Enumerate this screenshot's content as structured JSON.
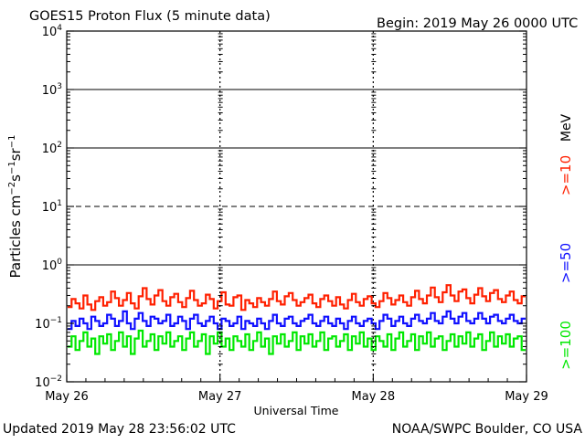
{
  "header": {
    "title": "GOES15 Proton Flux (5 minute data)",
    "begin": "Begin: 2019 May 26 0000 UTC"
  },
  "footer": {
    "updated": "Updated 2019 May 28 23:56:02 UTC",
    "credit": "NOAA/SWPC Boulder, CO USA"
  },
  "right_legend": {
    "unit": "MeV",
    "entries": [
      {
        "label": ">=10",
        "color": "#ff2000"
      },
      {
        "label": ">=50",
        "color": "#1010ff"
      },
      {
        "label": ">=100",
        "color": "#00e800"
      }
    ]
  },
  "chart_data": {
    "type": "line",
    "title": "GOES15 Proton Flux (5 minute data)",
    "xlabel": "Universal Time",
    "ylabel_parts": {
      "base": "Particles cm",
      "exp1": "−2",
      "mid1": "s",
      "exp2": "−1",
      "mid2": "sr",
      "exp3": "−1"
    },
    "y_scale": "log",
    "ylim": [
      0.01,
      10000
    ],
    "y_ticks": [
      {
        "value": 0.01,
        "base": "10",
        "exp": "−2"
      },
      {
        "value": 0.1,
        "base": "10",
        "exp": "−1"
      },
      {
        "value": 1,
        "base": "10",
        "exp": "0"
      },
      {
        "value": 10,
        "base": "10",
        "exp": "1"
      },
      {
        "value": 100,
        "base": "10",
        "exp": "2"
      },
      {
        "value": 1000,
        "base": "10",
        "exp": "3"
      },
      {
        "value": 10000,
        "base": "10",
        "exp": "4"
      }
    ],
    "x_ticks": [
      "May 26",
      "May 27",
      "May 28",
      "May 29"
    ],
    "xlim_days": [
      0,
      3
    ],
    "threshold_lines": [
      {
        "value": 10,
        "style": "dashed"
      },
      {
        "value": 1,
        "style": "solid"
      },
      {
        "value": 100,
        "style": "solid"
      },
      {
        "value": 1000,
        "style": "solid"
      }
    ],
    "series": [
      {
        "name": ">=10",
        "color": "#ff2000",
        "values": [
          0.19,
          0.26,
          0.22,
          0.18,
          0.3,
          0.21,
          0.17,
          0.24,
          0.28,
          0.2,
          0.23,
          0.35,
          0.27,
          0.2,
          0.25,
          0.33,
          0.22,
          0.18,
          0.29,
          0.4,
          0.26,
          0.21,
          0.3,
          0.37,
          0.24,
          0.2,
          0.28,
          0.32,
          0.23,
          0.19,
          0.27,
          0.36,
          0.25,
          0.2,
          0.22,
          0.31,
          0.26,
          0.18,
          0.24,
          0.34,
          0.21,
          0.2,
          0.28,
          0.3,
          0.17,
          0.25,
          0.22,
          0.19,
          0.27,
          0.23,
          0.2,
          0.26,
          0.35,
          0.24,
          0.21,
          0.29,
          0.33,
          0.25,
          0.2,
          0.23,
          0.27,
          0.31,
          0.22,
          0.19,
          0.26,
          0.3,
          0.24,
          0.2,
          0.28,
          0.21,
          0.18,
          0.25,
          0.32,
          0.23,
          0.2,
          0.26,
          0.29,
          0.22,
          0.19,
          0.24,
          0.33,
          0.27,
          0.21,
          0.25,
          0.3,
          0.23,
          0.2,
          0.28,
          0.36,
          0.26,
          0.22,
          0.3,
          0.41,
          0.28,
          0.23,
          0.34,
          0.45,
          0.3,
          0.24,
          0.35,
          0.38,
          0.27,
          0.22,
          0.31,
          0.4,
          0.29,
          0.24,
          0.33,
          0.37,
          0.26,
          0.23,
          0.3,
          0.35,
          0.25,
          0.22,
          0.29
        ]
      },
      {
        "name": ">=50",
        "color": "#1010ff",
        "values": [
          0.08,
          0.11,
          0.09,
          0.12,
          0.1,
          0.08,
          0.13,
          0.11,
          0.09,
          0.1,
          0.14,
          0.12,
          0.09,
          0.11,
          0.16,
          0.1,
          0.08,
          0.12,
          0.15,
          0.11,
          0.09,
          0.13,
          0.12,
          0.1,
          0.11,
          0.14,
          0.09,
          0.1,
          0.13,
          0.11,
          0.08,
          0.12,
          0.14,
          0.1,
          0.09,
          0.11,
          0.13,
          0.1,
          0.08,
          0.12,
          0.11,
          0.09,
          0.1,
          0.13,
          0.08,
          0.11,
          0.1,
          0.09,
          0.12,
          0.1,
          0.08,
          0.11,
          0.14,
          0.1,
          0.09,
          0.12,
          0.13,
          0.1,
          0.09,
          0.11,
          0.12,
          0.14,
          0.1,
          0.09,
          0.11,
          0.13,
          0.1,
          0.09,
          0.12,
          0.1,
          0.08,
          0.11,
          0.13,
          0.1,
          0.09,
          0.11,
          0.12,
          0.1,
          0.08,
          0.11,
          0.14,
          0.12,
          0.09,
          0.11,
          0.13,
          0.1,
          0.09,
          0.12,
          0.14,
          0.11,
          0.1,
          0.12,
          0.15,
          0.11,
          0.1,
          0.13,
          0.16,
          0.12,
          0.1,
          0.13,
          0.15,
          0.11,
          0.1,
          0.12,
          0.15,
          0.12,
          0.1,
          0.13,
          0.14,
          0.11,
          0.1,
          0.12,
          0.14,
          0.11,
          0.1,
          0.12
        ]
      },
      {
        "name": ">=100",
        "color": "#00e800",
        "values": [
          0.04,
          0.06,
          0.035,
          0.05,
          0.07,
          0.04,
          0.055,
          0.03,
          0.06,
          0.045,
          0.065,
          0.035,
          0.05,
          0.07,
          0.04,
          0.06,
          0.03,
          0.055,
          0.075,
          0.04,
          0.05,
          0.065,
          0.035,
          0.06,
          0.045,
          0.07,
          0.04,
          0.05,
          0.06,
          0.035,
          0.055,
          0.07,
          0.04,
          0.05,
          0.065,
          0.03,
          0.06,
          0.045,
          0.07,
          0.04,
          0.055,
          0.035,
          0.06,
          0.05,
          0.04,
          0.065,
          0.035,
          0.05,
          0.07,
          0.04,
          0.055,
          0.03,
          0.06,
          0.045,
          0.065,
          0.04,
          0.05,
          0.07,
          0.035,
          0.06,
          0.045,
          0.065,
          0.04,
          0.05,
          0.07,
          0.035,
          0.055,
          0.06,
          0.04,
          0.05,
          0.065,
          0.035,
          0.06,
          0.045,
          0.07,
          0.04,
          0.055,
          0.035,
          0.06,
          0.05,
          0.04,
          0.065,
          0.035,
          0.055,
          0.07,
          0.04,
          0.05,
          0.065,
          0.035,
          0.06,
          0.045,
          0.07,
          0.04,
          0.055,
          0.06,
          0.035,
          0.05,
          0.065,
          0.04,
          0.06,
          0.045,
          0.07,
          0.04,
          0.055,
          0.065,
          0.035,
          0.05,
          0.07,
          0.04,
          0.06,
          0.045,
          0.065,
          0.04,
          0.055,
          0.06,
          0.035
        ]
      }
    ]
  }
}
